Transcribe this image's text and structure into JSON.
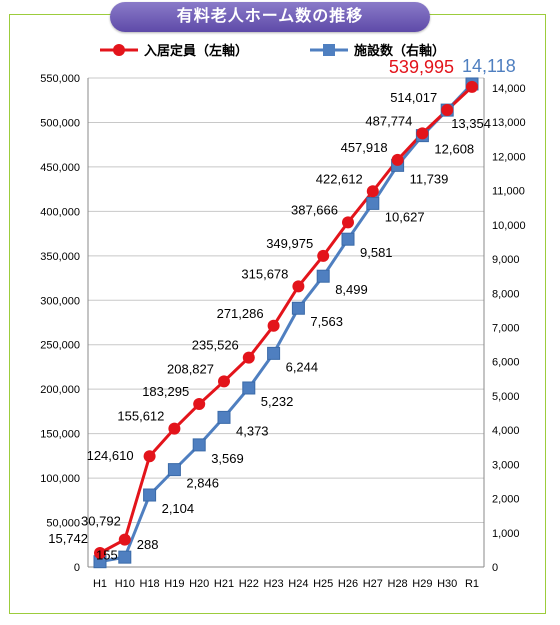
{
  "title": "有料老人ホーム数の推移",
  "colors": {
    "left": "#e3141b",
    "right": "#4f7fc0",
    "grid": "#c8c8c8",
    "frame": "#9ccc3c"
  },
  "chart_data": {
    "type": "line",
    "title": "有料老人ホーム数の推移",
    "categories": [
      "H1",
      "H10",
      "H18",
      "H19",
      "H20",
      "H21",
      "H22",
      "H23",
      "H24",
      "H25",
      "H26",
      "H27",
      "H28",
      "H29",
      "H30",
      "R1"
    ],
    "series": [
      {
        "name": "入居定員（左軸）",
        "axis": "left",
        "color": "#e3141b",
        "marker": "circle",
        "values": [
          15742,
          30792,
          124610,
          155612,
          183295,
          208827,
          235526,
          271286,
          315678,
          349975,
          387666,
          422612,
          457918,
          487774,
          514017,
          539995
        ],
        "labels": [
          "15,742",
          "30,792",
          "124,610",
          "155,612",
          "183,295",
          "208,827",
          "235,526",
          "271,286",
          "315,678",
          "349,975",
          "387,666",
          "422,612",
          "457,918",
          "487,774",
          "514,017",
          "539,995"
        ]
      },
      {
        "name": "施設数（右軸）",
        "axis": "right",
        "color": "#4f7fc0",
        "marker": "square",
        "values": [
          155,
          288,
          2104,
          2846,
          3569,
          4373,
          5232,
          6244,
          7563,
          8499,
          9581,
          10627,
          11739,
          12608,
          13354,
          14118
        ],
        "labels": [
          "155",
          "288",
          "2,104",
          "2,846",
          "3,569",
          "4,373",
          "5,232",
          "6,244",
          "7,563",
          "8,499",
          "9,581",
          "10,627",
          "11,739",
          "12,608",
          "13,354",
          "14,118"
        ]
      }
    ],
    "y_left": {
      "min": 0,
      "max": 550000,
      "step": 50000,
      "ticks": [
        "0",
        "50,000",
        "100,000",
        "150,000",
        "200,000",
        "250,000",
        "300,000",
        "350,000",
        "400,000",
        "450,000",
        "500,000",
        "550,000"
      ]
    },
    "y_right": {
      "min": 0,
      "max": 14000,
      "step": 1000,
      "ticks": [
        "0",
        "1,000",
        "2,000",
        "3,000",
        "4,000",
        "5,000",
        "6,000",
        "7,000",
        "8,000",
        "9,000",
        "10,000",
        "11,000",
        "12,000",
        "13,000",
        "14,000"
      ]
    },
    "grid": true,
    "legend": "top-center"
  }
}
